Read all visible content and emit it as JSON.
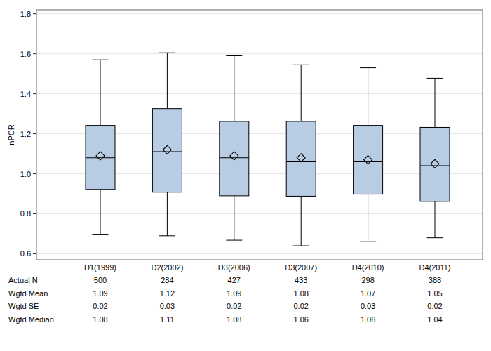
{
  "chart_data": {
    "type": "box",
    "y_label": "nPCR",
    "categories": [
      "D1(1999)",
      "D2(2002)",
      "D3(2006)",
      "D3(2007)",
      "D4(2010)",
      "D4(2011)"
    ],
    "whisker_low": [
      0.695,
      0.69,
      0.668,
      0.64,
      0.662,
      0.68
    ],
    "q1": [
      0.922,
      0.908,
      0.89,
      0.888,
      0.898,
      0.862
    ],
    "q3": [
      1.242,
      1.326,
      1.262,
      1.262,
      1.242,
      1.232
    ],
    "whisker_high": [
      1.57,
      1.605,
      1.59,
      1.545,
      1.53,
      1.478
    ],
    "color": "#b8cce4",
    "ylim": [
      0.57,
      1.82
    ],
    "yticks": [
      0.6,
      0.8,
      {
        "value": 1,
        "label": "1.0"
      },
      1.2,
      1.4,
      1.6,
      1.8
    ],
    "grid": true,
    "table": {
      "rows": [
        {
          "label": "Actual N",
          "values": [
            500,
            284,
            427,
            433,
            298,
            388
          ]
        },
        {
          "label": "Wgtd Mean",
          "values": [
            1.09,
            1.12,
            1.09,
            1.08,
            1.07,
            1.05
          ]
        },
        {
          "label": "Wgtd SE",
          "values": [
            0.02,
            0.03,
            0.02,
            0.02,
            0.03,
            0.02
          ]
        },
        {
          "label": "Wgtd Median",
          "values": [
            1.08,
            1.11,
            1.08,
            1.06,
            1.06,
            1.04
          ]
        }
      ]
    }
  }
}
